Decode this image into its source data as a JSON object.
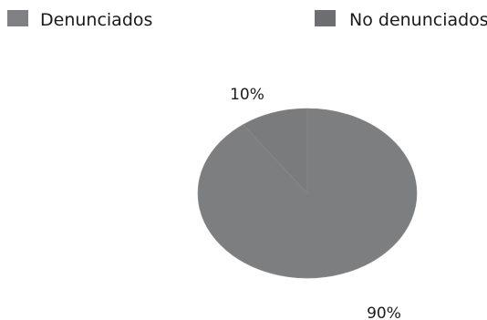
{
  "chart_data": {
    "type": "pie",
    "categories": [
      "Denunciados",
      "No denunciados"
    ],
    "values": [
      90,
      10
    ],
    "data_labels": [
      "90%",
      "10%"
    ],
    "legend_placement": "top",
    "colors": {
      "denunciados": "#7d7e80",
      "no_denunciados": "#7a7b7d",
      "legend_swatch_denunciados": "#808184",
      "legend_swatch_no_denunciados": "#6d6e71"
    }
  }
}
